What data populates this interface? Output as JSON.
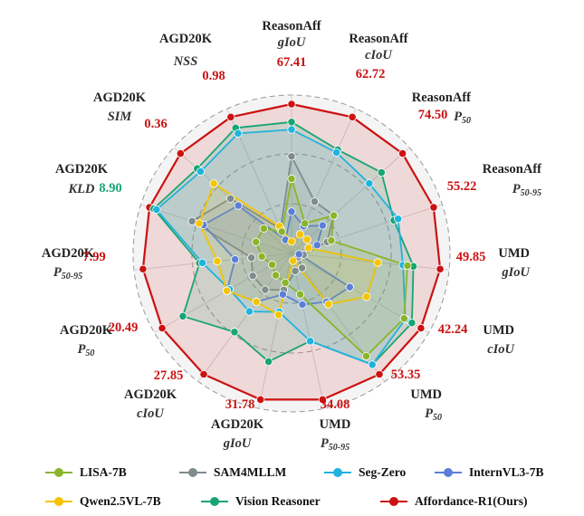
{
  "chart_data": {
    "type": "radar",
    "title": "",
    "axes": [
      {
        "name": "ReasonAff",
        "metric": "gIoU",
        "sub": "",
        "max_label": "67.41"
      },
      {
        "name": "ReasonAff",
        "metric": "cIoU",
        "sub": "",
        "max_label": "62.72"
      },
      {
        "name": "ReasonAff",
        "metric": "P",
        "sub": "50",
        "max_label": "74.50"
      },
      {
        "name": "ReasonAff",
        "metric": "P",
        "sub": "50-95",
        "max_label": "55.22"
      },
      {
        "name": "UMD",
        "metric": "gIoU",
        "sub": "",
        "max_label": "49.85"
      },
      {
        "name": "UMD",
        "metric": "cIoU",
        "sub": "",
        "max_label": "42.24"
      },
      {
        "name": "UMD",
        "metric": "P",
        "sub": "50",
        "max_label": "53.35"
      },
      {
        "name": "UMD",
        "metric": "P",
        "sub": "50-95",
        "max_label": "34.08"
      },
      {
        "name": "AGD20K",
        "metric": "gIoU",
        "sub": "",
        "max_label": "31.78"
      },
      {
        "name": "AGD20K",
        "metric": "cIoU",
        "sub": "",
        "max_label": "27.85"
      },
      {
        "name": "AGD20K",
        "metric": "P",
        "sub": "50",
        "max_label": "20.49"
      },
      {
        "name": "AGD20K",
        "metric": "P",
        "sub": "50-95",
        "max_label": "7.99"
      },
      {
        "name": "AGD20K",
        "metric": "KLD",
        "sub": "",
        "max_label": "8.90"
      },
      {
        "name": "AGD20K",
        "metric": "SIM",
        "sub": "",
        "max_label": "0.36"
      },
      {
        "name": "AGD20K",
        "metric": "NSS",
        "sub": "",
        "max_label": "0.98"
      }
    ],
    "value_scale": "fraction of axis radius (0-1)",
    "grid": "dashed circles",
    "legend_position": "bottom",
    "series": [
      {
        "name": "LISA-7B",
        "color": "#8ab52a",
        "values": [
          0.5,
          0.22,
          0.38,
          0.28,
          0.78,
          0.87,
          0.85,
          0.28,
          0.2,
          0.18,
          0.15,
          0.2,
          0.25,
          0.25,
          0.16
        ]
      },
      {
        "name": "SAM4MLLM",
        "color": "#7f8c8d",
        "values": [
          0.65,
          0.38,
          0.38,
          0.25,
          0.08,
          0.05,
          0.12,
          0.12,
          0.25,
          0.3,
          0.3,
          0.27,
          0.7,
          0.55,
          0.18
        ]
      },
      {
        "name": "Seg-Zero",
        "color": "#1fb3de",
        "values": [
          0.83,
          0.74,
          0.7,
          0.75,
          0.75,
          0.88,
          0.92,
          0.6,
          0.4,
          0.48,
          0.48,
          0.6,
          0.95,
          0.82,
          0.88
        ]
      },
      {
        "name": "InternVL3-7B",
        "color": "#5b7fd6",
        "values": [
          0.28,
          0.2,
          0.28,
          0.18,
          0.05,
          0.45,
          0.4,
          0.35,
          0.28,
          0.4,
          0.5,
          0.38,
          0.62,
          0.48,
          0.1
        ]
      },
      {
        "name": "Qwen2.5VL-7B",
        "color": "#f5c400",
        "values": [
          0.08,
          0.14,
          0.14,
          0.12,
          0.58,
          0.58,
          0.42,
          0.05,
          0.42,
          0.4,
          0.5,
          0.5,
          0.65,
          0.7,
          0.2
        ]
      },
      {
        "name": "Vision Reasoner",
        "color": "#18a574",
        "values": [
          0.88,
          0.76,
          0.81,
          0.72,
          0.82,
          0.93,
          0.92,
          0.6,
          0.74,
          0.65,
          0.84,
          0.62,
          0.97,
          0.85,
          0.92
        ]
      },
      {
        "name": "Affordance-R1(Ours)",
        "color": "#cc1111",
        "values": [
          1,
          1,
          1,
          1,
          1,
          1,
          1,
          1,
          1,
          1,
          1,
          1,
          1,
          1,
          1
        ]
      }
    ],
    "max_label_colors": [
      "#cc1111",
      "#cc1111",
      "#cc1111",
      "#cc1111",
      "#cc1111",
      "#cc1111",
      "#cc1111",
      "#cc1111",
      "#cc1111",
      "#cc1111",
      "#cc1111",
      "#cc1111",
      "#18a574",
      "#cc1111",
      "#cc1111"
    ]
  }
}
